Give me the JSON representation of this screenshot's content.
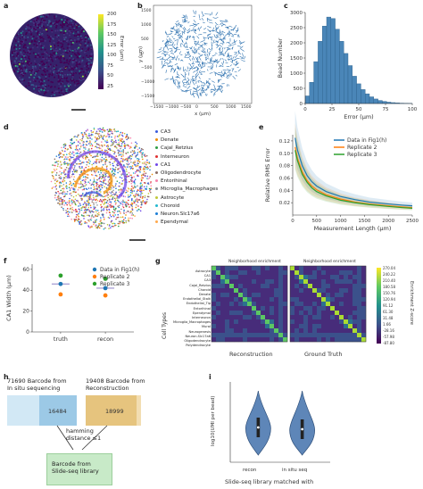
{
  "panels": {
    "a": {
      "letter": "a",
      "colorbar_label": "Error (μm)",
      "colorbar_ticks": [
        "200",
        "175",
        "150",
        "125",
        "100",
        "75",
        "50",
        "25"
      ]
    },
    "b": {
      "letter": "b",
      "xlabel": "x (μm)",
      "ylabel": "y (μm)",
      "xticks": [
        "−1500",
        "−1000",
        "−500",
        "0",
        "500",
        "1000",
        "1500"
      ],
      "yticks": [
        "1500",
        "1000",
        "500",
        "0",
        "−500",
        "−1000",
        "−1500"
      ]
    },
    "c": {
      "letter": "c"
    },
    "d": {
      "letter": "d",
      "cell_types": [
        {
          "name": "CA3",
          "color": "#3b5bdb"
        },
        {
          "name": "Denate",
          "color": "#f08c00"
        },
        {
          "name": "Cajal_Retzius",
          "color": "#2f9e44"
        },
        {
          "name": "Interneuron",
          "color": "#e03131"
        },
        {
          "name": "CA1",
          "color": "#7048e8"
        },
        {
          "name": "Oligodendrocyte",
          "color": "#8d6e63"
        },
        {
          "name": "Entorihinal",
          "color": "#f783ac"
        },
        {
          "name": "Microglia_Macrophages",
          "color": "#868e96"
        },
        {
          "name": "Astrocyte",
          "color": "#c0c838"
        },
        {
          "name": "Choroid",
          "color": "#22b8cf"
        },
        {
          "name": "Neuron.Slc17a6",
          "color": "#1c7ed6"
        },
        {
          "name": "Ependymal",
          "color": "#ffa94d"
        }
      ]
    },
    "e": {
      "letter": "e"
    },
    "f": {
      "letter": "f",
      "legend": [
        {
          "name": "Data in Fig1(h)",
          "color": "#1f77b4"
        },
        {
          "name": "Replicate 2",
          "color": "#ff7f0e"
        },
        {
          "name": "Replicate 3",
          "color": "#2ca02c"
        }
      ]
    },
    "g": {
      "letter": "g",
      "title_left": "Neighborhood enrichment",
      "title_right": "Neighborhood enrichment",
      "xlabel_left": "Reconstruction",
      "xlabel_right": "Ground Truth",
      "ylabel": "Cell Types",
      "colorbar_label": "Enrichment Z-score",
      "colorbar_ticks": [
        "270.04",
        "240.22",
        "210.40",
        "180.58",
        "150.76",
        "120.94",
        "91.12",
        "61.30",
        "31.48",
        "1.66",
        "-28.16",
        "-57.98",
        "-87.80"
      ],
      "row_labels": [
        "Astrocyte",
        "CA1",
        "CA3",
        "Cajal_Retzius",
        "Choroid",
        "Denate",
        "Endothelial_Stalk",
        "Endothelial_Tip",
        "Entorihinal",
        "Ependymal",
        "Interneuron",
        "Microglia_Macrophages",
        "Mural",
        "Neurogenesis",
        "Neuron.Slc17a6",
        "Oligodendrocyte",
        "Polydendrocyte"
      ]
    },
    "h": {
      "letter": "h",
      "left_title": "71690 Barcode from\nIn situ sequencing",
      "left_count": "16484",
      "right_title": "19408 Barcode from\nReconstruction",
      "right_count": "18999",
      "hamming": "hamming\ndistance ≤1",
      "bottom_box": "Barcode from\nSlide-seq library"
    },
    "i": {
      "letter": "i",
      "ylabel": "log10(UMI per bead)",
      "categories": [
        "recon",
        "in situ seq"
      ],
      "xlabel": "Slide-seq library matched with"
    }
  },
  "chart_data": [
    {
      "panel": "c",
      "type": "bar",
      "xlabel": "Error (μm)",
      "ylabel": "Bead Number",
      "ylim": [
        0,
        3000
      ],
      "xlim": [
        0,
        100
      ],
      "yticks": [
        0,
        500,
        1000,
        1500,
        2000,
        2500,
        3000
      ],
      "xticks": [
        0,
        25,
        50,
        75,
        100
      ],
      "bin_width": 4,
      "bin_starts": [
        0,
        4,
        8,
        12,
        16,
        20,
        24,
        28,
        32,
        36,
        40,
        44,
        48,
        52,
        56,
        60,
        64,
        68,
        72,
        76,
        80,
        84,
        88,
        92,
        96
      ],
      "values": [
        250,
        700,
        1380,
        2050,
        2550,
        2850,
        2800,
        2450,
        2050,
        1650,
        1250,
        900,
        650,
        460,
        320,
        220,
        150,
        100,
        70,
        45,
        30,
        20,
        12,
        8,
        5
      ]
    },
    {
      "panel": "e",
      "type": "line",
      "xlabel": "Measurement Length (μm)",
      "ylabel": "Relative RMS Error",
      "xlim": [
        0,
        2500
      ],
      "ylim": [
        0.0,
        0.13
      ],
      "xticks": [
        0,
        500,
        1000,
        1500,
        2000,
        2500
      ],
      "yticks": [
        0.02,
        0.04,
        0.06,
        0.08,
        0.1,
        0.12
      ],
      "x": [
        50,
        100,
        200,
        300,
        400,
        500,
        700,
        1000,
        1300,
        1600,
        2000,
        2300,
        2500
      ],
      "series": [
        {
          "name": "Data in Fig1(h)",
          "color": "#1f77b4",
          "values": [
            0.125,
            0.105,
            0.08,
            0.064,
            0.054,
            0.047,
            0.038,
            0.03,
            0.025,
            0.021,
            0.018,
            0.016,
            0.015
          ]
        },
        {
          "name": "Replicate 2",
          "color": "#ff7f0e",
          "values": [
            0.11,
            0.092,
            0.07,
            0.056,
            0.047,
            0.041,
            0.033,
            0.026,
            0.021,
            0.018,
            0.015,
            0.013,
            0.012
          ]
        },
        {
          "name": "Replicate 3",
          "color": "#2ca02c",
          "values": [
            0.105,
            0.088,
            0.066,
            0.053,
            0.044,
            0.038,
            0.031,
            0.024,
            0.02,
            0.017,
            0.014,
            0.012,
            0.011
          ]
        }
      ]
    },
    {
      "panel": "f",
      "type": "scatter",
      "ylabel": "CA1 Width (μm)",
      "categories": [
        "truth",
        "recon"
      ],
      "ylim": [
        0,
        65
      ],
      "yticks": [
        0,
        20,
        40,
        60
      ],
      "series": [
        {
          "name": "Data in Fig1(h)",
          "color": "#1f77b4",
          "values": [
            46,
            42
          ]
        },
        {
          "name": "Replicate 2",
          "color": "#ff7f0e",
          "values": [
            36,
            35
          ]
        },
        {
          "name": "Replicate 3",
          "color": "#2ca02c",
          "values": [
            54,
            51
          ]
        }
      ],
      "means": [
        46,
        42
      ]
    },
    {
      "panel": "i",
      "type": "violin",
      "ylabel": "log10(UMI per bead)",
      "categories": [
        "recon",
        "in situ seq"
      ],
      "xlabel": "Slide-seq library matched with"
    }
  ]
}
